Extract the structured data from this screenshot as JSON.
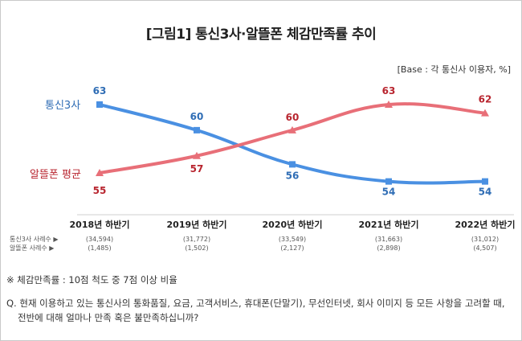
{
  "title": "[그림1] 통신3사·알뜰폰 체감만족률 추이",
  "base_note": "[Base : 각 통신사 이용자, %]",
  "chart_data": {
    "type": "line",
    "categories": [
      "2018년 하반기",
      "2019년 하반기",
      "2020년 하반기",
      "2021년 하반기",
      "2022년 하반기"
    ],
    "ylim": [
      50,
      66
    ],
    "grid": false,
    "series": [
      {
        "name": "통신3사",
        "color": "#4a90e2",
        "label_color": "#2f6db5",
        "values": [
          63,
          60,
          56,
          54,
          54
        ],
        "sample_label": "통신3사 사례수 ▶",
        "sample_sizes": [
          "(34,594)",
          "(31,772)",
          "(33,549)",
          "(31,663)",
          "(31,012)"
        ]
      },
      {
        "name": "알뜰폰 평균",
        "color": "#e86f78",
        "label_color": "#b8252f",
        "values": [
          55,
          57,
          60,
          63,
          62
        ],
        "sample_label": "알뜰폰 사례수 ▶",
        "sample_sizes": [
          "(1,485)",
          "(1,502)",
          "(2,127)",
          "(2,898)",
          "(4,507)"
        ]
      }
    ]
  },
  "footnote": "※ 체감만족률 : 10점 척도 중 7점 이상 비율",
  "question": {
    "line1": "Q. 현재 이용하고 있는 통신사의 통화품질, 요금, 고객서비스, 휴대폰(단말기), 무선인터넷, 회사 이미지 등 모든 사항을 고려할 때,",
    "line2": "전반에 대해 얼마나 만족 혹은 불만족하십니까?"
  }
}
